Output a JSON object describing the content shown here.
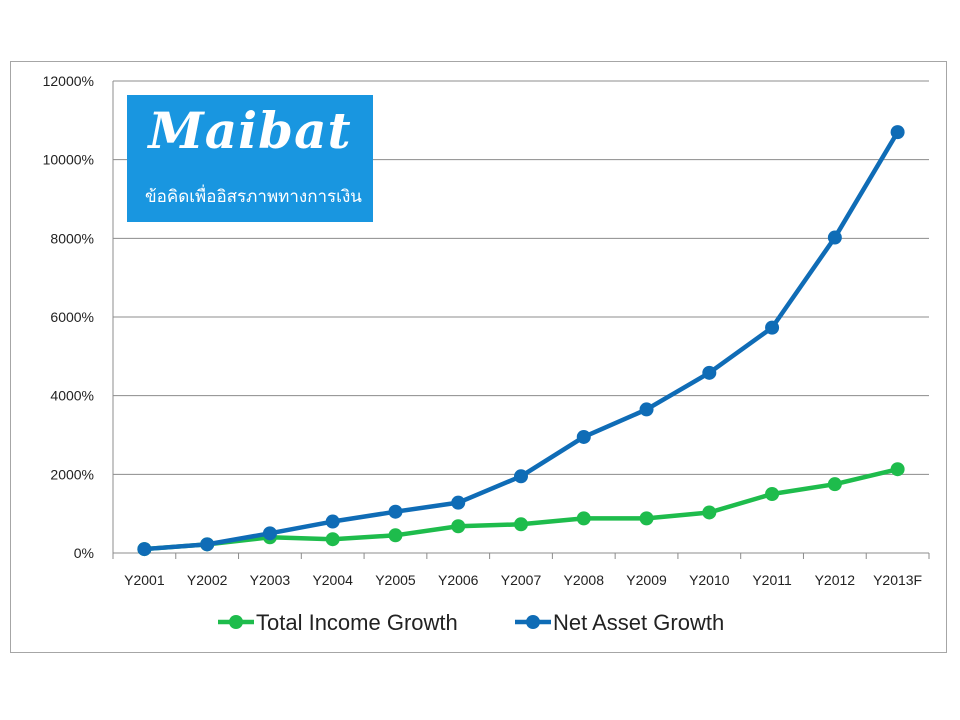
{
  "logo": {
    "name": "Maibat",
    "tagline": "ข้อคิดเพื่ออิสรภาพทางการเงิน",
    "background": "#1996e0",
    "text_color": "#ffffff"
  },
  "chart_data": {
    "type": "line",
    "categories": [
      "Y2001",
      "Y2002",
      "Y2003",
      "Y2004",
      "Y2005",
      "Y2006",
      "Y2007",
      "Y2008",
      "Y2009",
      "Y2010",
      "Y2011",
      "Y2012",
      "Y2013F"
    ],
    "series": [
      {
        "name": "Total Income Growth",
        "color": "#1ebc4c",
        "values": [
          100,
          220,
          400,
          350,
          450,
          680,
          730,
          880,
          880,
          1030,
          1500,
          1750,
          2130
        ]
      },
      {
        "name": "Net Asset Growth",
        "color": "#0f6cb6",
        "values": [
          100,
          220,
          500,
          800,
          1050,
          1280,
          1950,
          2950,
          3650,
          4580,
          5730,
          8020,
          10700
        ]
      }
    ],
    "y_ticks": [
      "0%",
      "2000%",
      "4000%",
      "6000%",
      "8000%",
      "10000%",
      "12000%"
    ],
    "ylim": [
      0,
      12000
    ],
    "y_unit": "%",
    "grid": true,
    "legend_position": "bottom"
  }
}
